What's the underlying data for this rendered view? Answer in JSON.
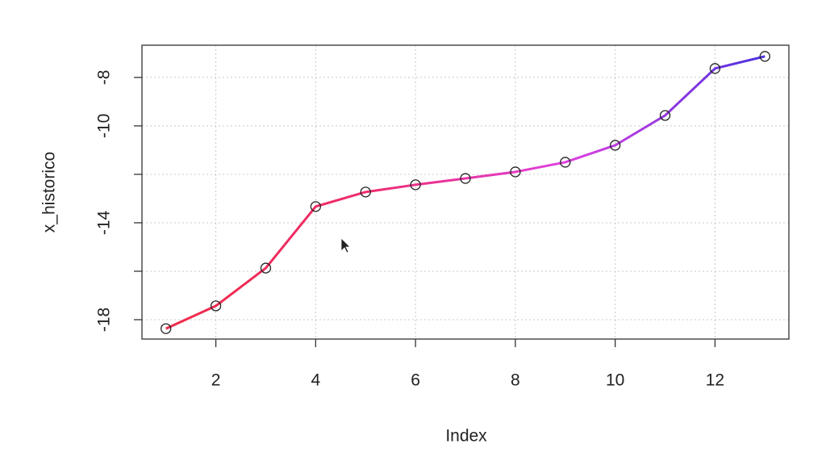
{
  "chart_data": {
    "type": "line",
    "x_label": "Index",
    "y_label": "x_historico",
    "x": [
      1,
      2,
      3,
      4,
      5,
      6,
      7,
      8,
      9,
      10,
      11,
      12,
      13
    ],
    "values": [
      -18.37,
      -17.43,
      -15.87,
      -13.33,
      -12.73,
      -12.43,
      -12.17,
      -11.9,
      -11.5,
      -10.8,
      -9.57,
      -7.63,
      -7.13
    ],
    "line_colors": [
      "#f02a48",
      "#ee2d6e",
      "#e040e0",
      "#4b30e0"
    ],
    "marker_color": "#222222",
    "xlim": [
      0.52,
      13.48
    ],
    "ylim": [
      -18.8,
      -6.67
    ],
    "xticks": [
      2,
      4,
      6,
      8,
      10,
      12
    ],
    "yticks": [
      -18,
      -14,
      -10,
      -8
    ],
    "minor_yticks": [
      -16,
      -12
    ],
    "grid": true
  }
}
